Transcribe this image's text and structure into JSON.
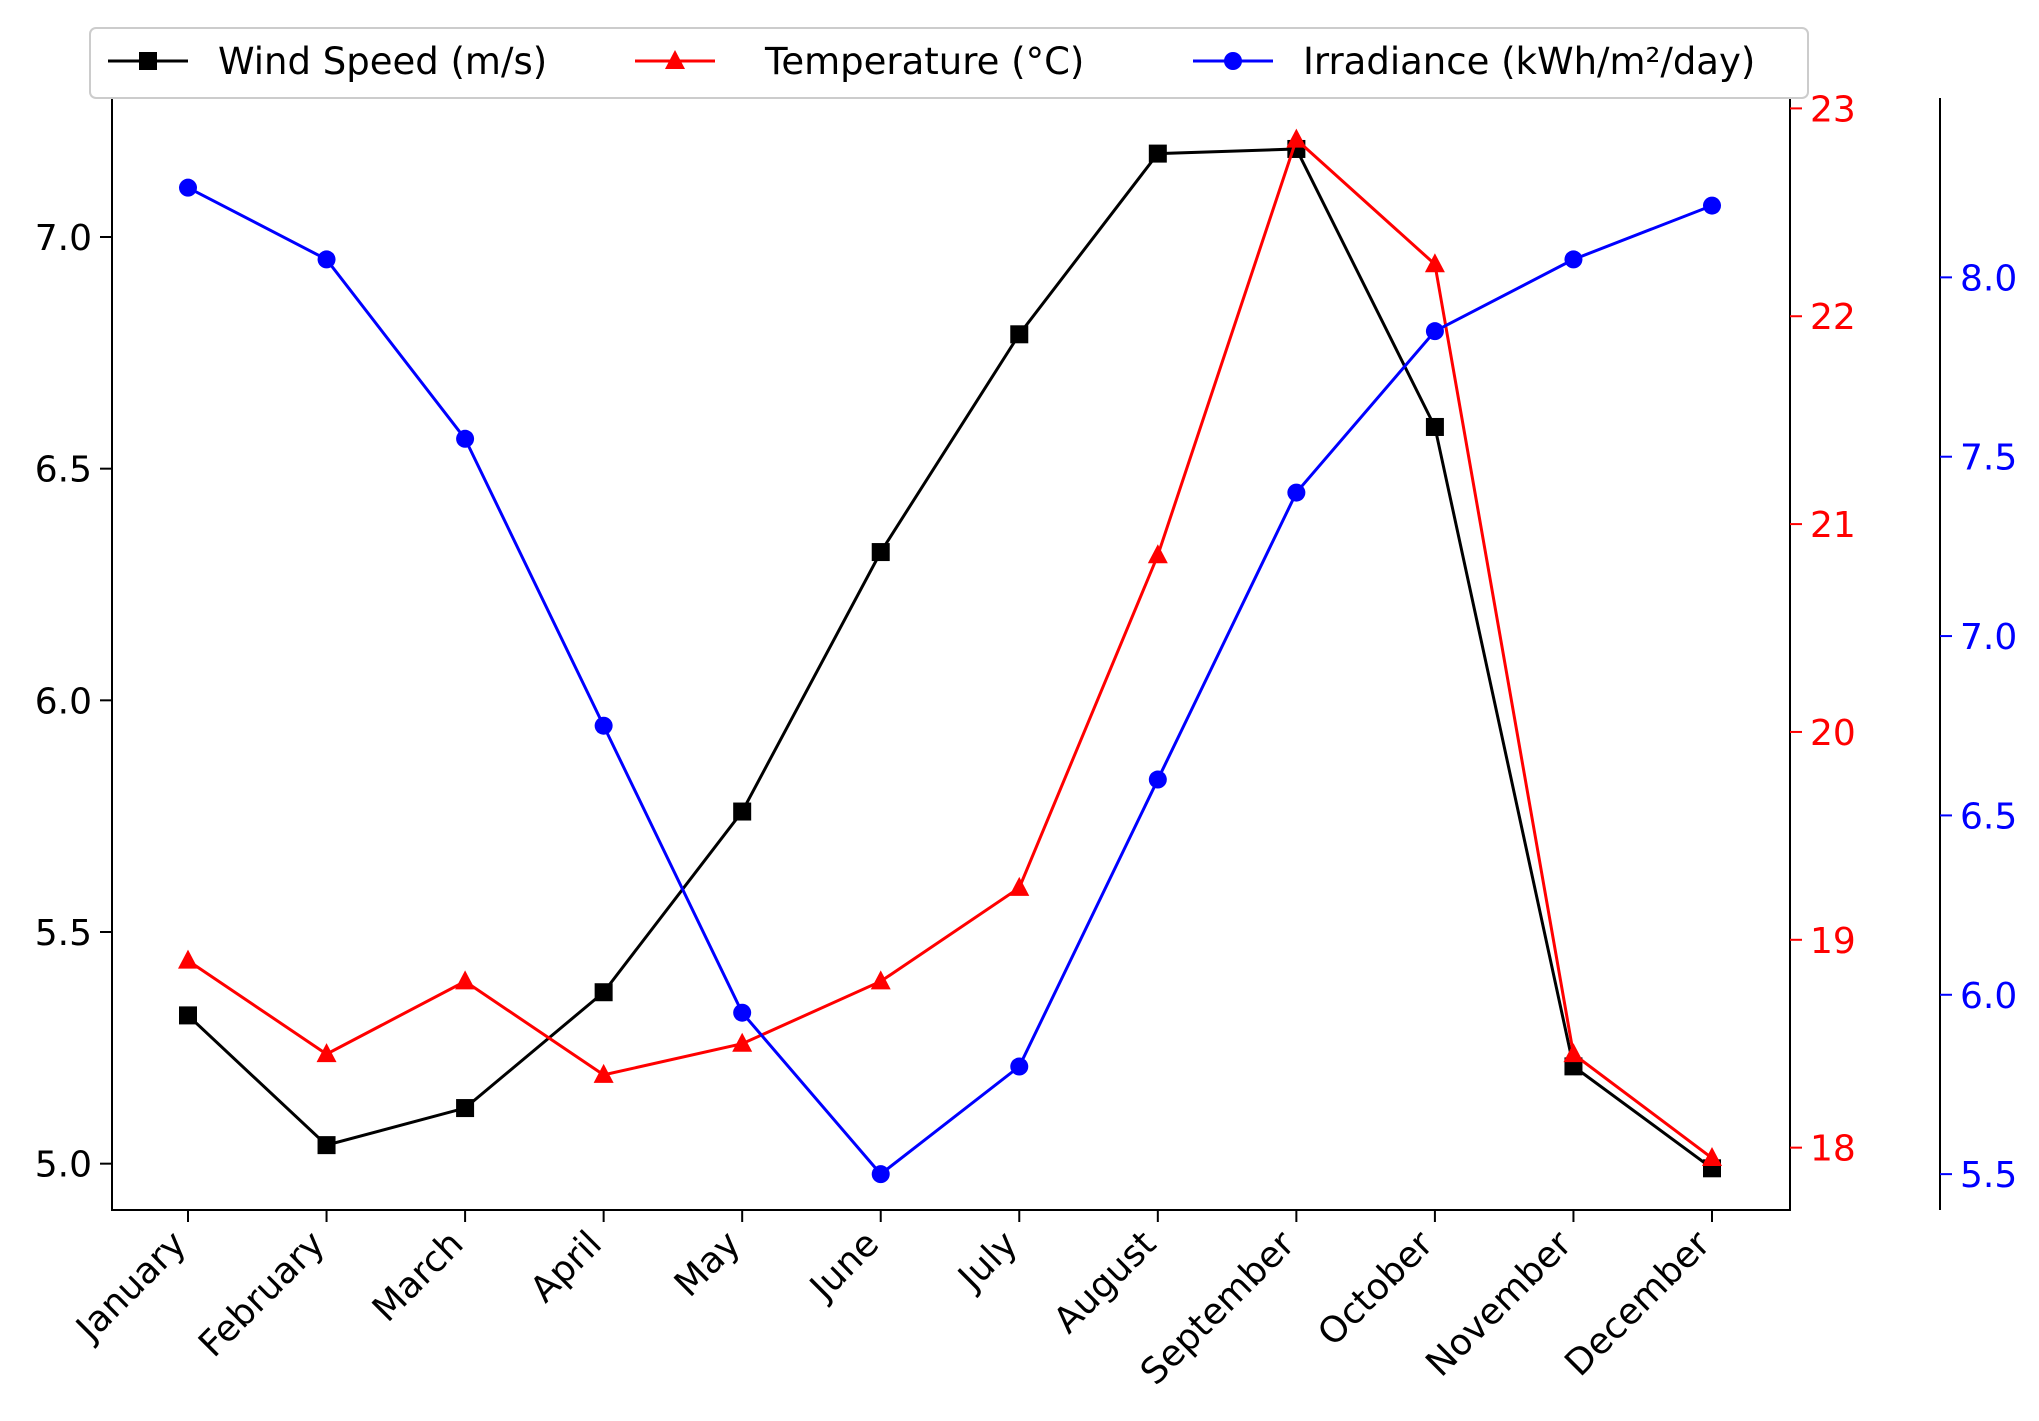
{
  "chart_data": {
    "type": "line",
    "categories": [
      "January",
      "February",
      "March",
      "April",
      "May",
      "June",
      "July",
      "August",
      "September",
      "October",
      "November",
      "December"
    ],
    "series": [
      {
        "name": "Wind Speed (m/s)",
        "color": "#000000",
        "marker": "square",
        "axis": "left",
        "values": [
          5.32,
          5.04,
          5.12,
          5.37,
          5.76,
          6.32,
          6.79,
          7.18,
          7.19,
          6.59,
          5.21,
          4.99
        ]
      },
      {
        "name": "Temperature (°C)",
        "color": "#ff0000",
        "marker": "triangle",
        "axis": "right",
        "values": [
          18.9,
          18.45,
          18.8,
          18.35,
          18.5,
          18.8,
          19.25,
          20.85,
          22.85,
          22.25,
          18.45,
          17.95
        ]
      },
      {
        "name": "Irradiance (kWh/m²/day)",
        "color": "#0000ff",
        "marker": "circle",
        "axis": "right-offset",
        "values": [
          8.25,
          8.05,
          7.55,
          6.75,
          5.95,
          5.5,
          5.8,
          6.6,
          7.4,
          7.85,
          8.05,
          8.2
        ]
      }
    ],
    "axes": {
      "left": {
        "ylim": [
          4.9,
          7.3
        ],
        "ticks": [
          5.0,
          5.5,
          6.0,
          6.5,
          7.0
        ],
        "tick_labels": [
          "5.0",
          "5.5",
          "6.0",
          "6.5",
          "7.0"
        ],
        "color": "#000000"
      },
      "right": {
        "ylim": [
          17.7,
          23.05
        ],
        "ticks": [
          18,
          19,
          20,
          21,
          22,
          23
        ],
        "tick_labels": [
          "18",
          "19",
          "20",
          "21",
          "22",
          "23"
        ],
        "color": "#ff0000"
      },
      "right_offset": {
        "ylim": [
          5.4,
          8.5
        ],
        "ticks": [
          5.5,
          6.0,
          6.5,
          7.0,
          7.5,
          8.0
        ],
        "tick_labels": [
          "5.5",
          "6.0",
          "6.5",
          "7.0",
          "7.5",
          "8.0"
        ],
        "color": "#0000ff"
      }
    },
    "xlabel": "",
    "ylabel": "",
    "title": "",
    "grid": false,
    "legend_position": "top"
  }
}
